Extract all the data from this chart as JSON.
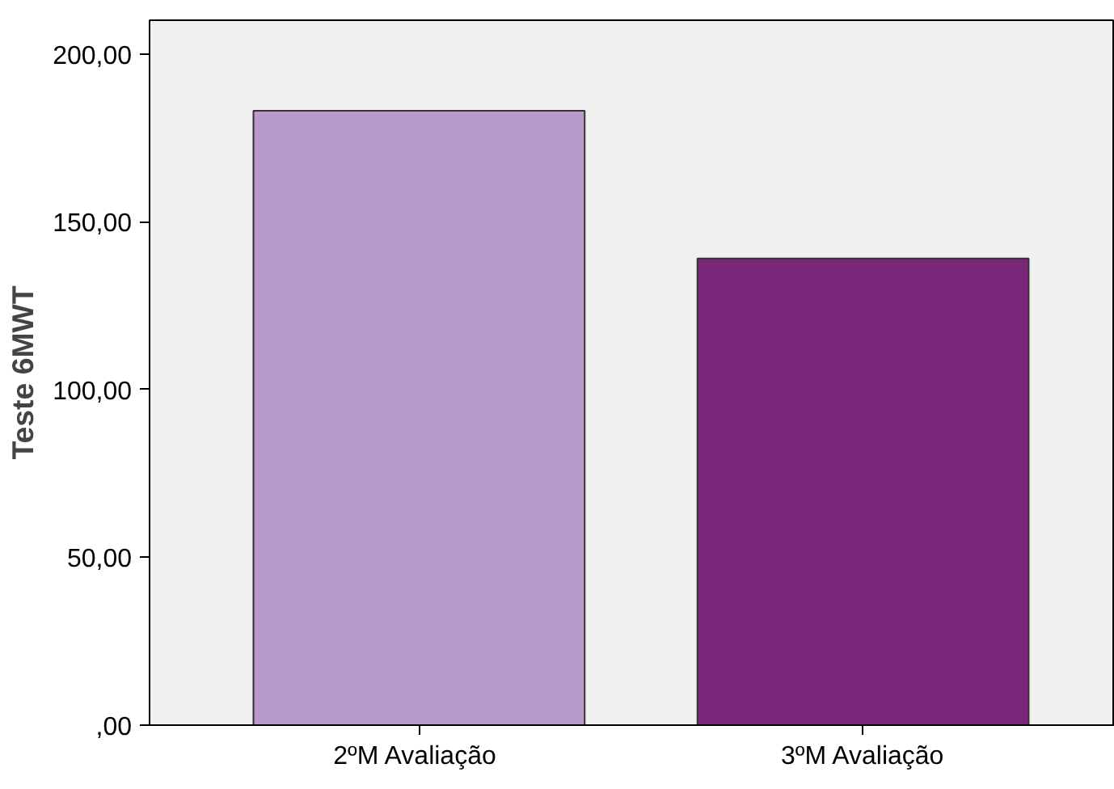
{
  "chart_data": {
    "type": "bar",
    "ylabel": "Teste 6MWT",
    "categories": [
      "2ºM  Avaliação",
      "3ºM Avaliação"
    ],
    "values": [
      183,
      139
    ],
    "colors": [
      "#b89aca",
      "#7a2779"
    ],
    "ylim": [
      0,
      210
    ],
    "yticks": [
      {
        "value": 0,
        "label": ",00"
      },
      {
        "value": 50,
        "label": "50,00"
      },
      {
        "value": 100,
        "label": "100,00"
      },
      {
        "value": 150,
        "label": "150,00"
      },
      {
        "value": 200,
        "label": "200,00"
      }
    ],
    "grid": false
  }
}
